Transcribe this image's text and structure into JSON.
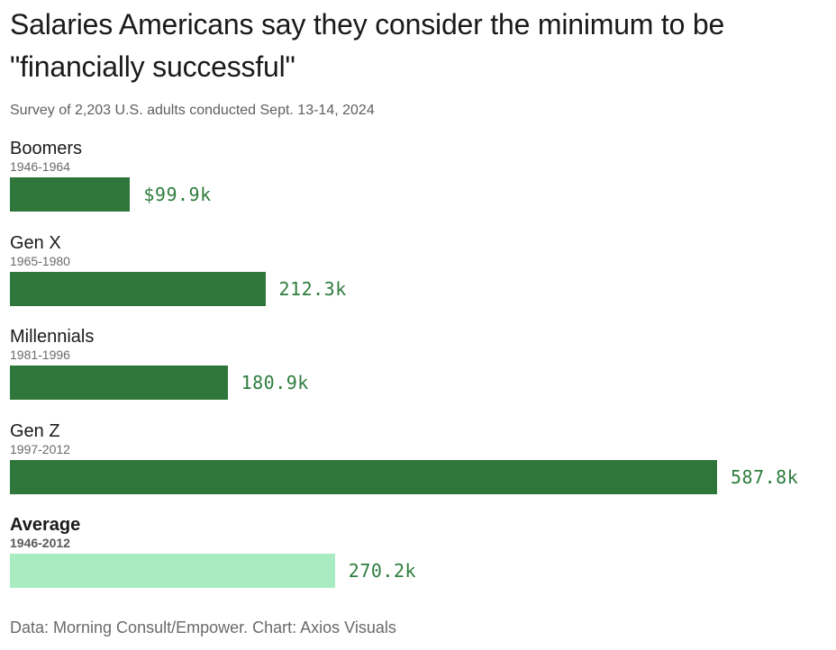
{
  "title": "Salaries Americans say they consider the minimum to be \"financially successful\"",
  "subtitle": "Survey of 2,203 U.S. adults conducted Sept. 13-14, 2024",
  "source": "Data: Morning Consult/Empower. Chart: Axios Visuals",
  "colors": {
    "bar": "#2e7639",
    "bar_average": "#a9ecc1",
    "value_text": "#2e7d3e"
  },
  "chart_data": {
    "type": "bar",
    "orientation": "horizontal",
    "title": "Salaries Americans say they consider the minimum to be \"financially successful\"",
    "subtitle": "Survey of 2,203 U.S. adults conducted Sept. 13-14, 2024",
    "unit": "thousands of US dollars",
    "xlim": [
      0,
      587.8
    ],
    "grid": false,
    "categories": [
      "Boomers",
      "Gen X",
      "Millennials",
      "Gen Z",
      "Average"
    ],
    "subcategories": [
      "1946-1964",
      "1965-1980",
      "1981-1996",
      "1997-2012",
      "1946-2012"
    ],
    "values": [
      99.9,
      212.3,
      180.9,
      587.8,
      270.2
    ],
    "value_labels": [
      "$99.9k",
      "212.3k",
      "180.9k",
      "587.8k",
      "270.2k"
    ],
    "highlight": [
      false,
      false,
      false,
      false,
      true
    ]
  }
}
